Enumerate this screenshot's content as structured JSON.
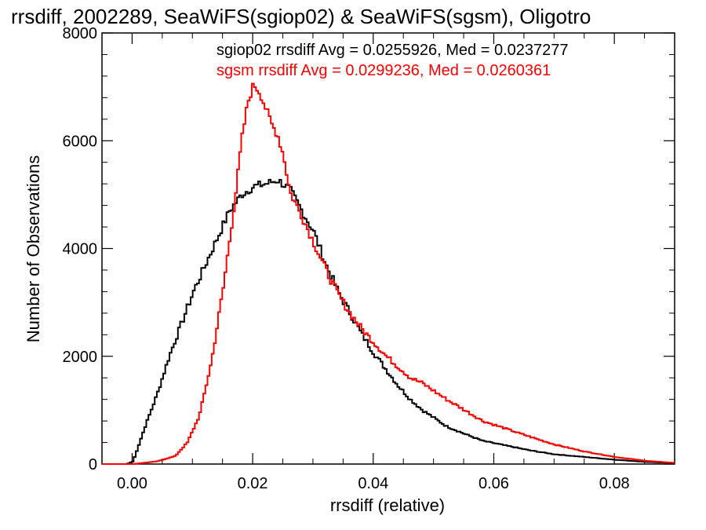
{
  "chart_data": {
    "type": "line",
    "title": "rrsdiff, 2002289, SeaWiFS(sgiop02) & SeaWiFS(sgsm), Oligotro",
    "xlabel": "rrsdiff (relative)",
    "ylabel": "Number of Observations",
    "xlim": [
      -0.005,
      0.09
    ],
    "ylim": [
      0,
      8000
    ],
    "xticks": [
      0.0,
      0.02,
      0.04,
      0.06,
      0.08
    ],
    "xtick_labels": [
      "0.00",
      "0.02",
      "0.04",
      "0.06",
      "0.08"
    ],
    "yticks": [
      0,
      2000,
      4000,
      6000,
      8000
    ],
    "ytick_labels": [
      "0",
      "2000",
      "4000",
      "6000",
      "8000"
    ],
    "grid": false,
    "legend_placement": "top-right",
    "series": [
      {
        "name": "sgiop02 rrsdiff Avg = 0.0255926, Med = 0.0237277",
        "color": "#000000",
        "style": "step",
        "x": [
          -0.004,
          -0.001,
          0.0,
          0.002,
          0.004,
          0.006,
          0.008,
          0.01,
          0.012,
          0.014,
          0.016,
          0.018,
          0.02,
          0.022,
          0.024,
          0.026,
          0.028,
          0.03,
          0.032,
          0.034,
          0.036,
          0.038,
          0.04,
          0.042,
          0.044,
          0.046,
          0.048,
          0.05,
          0.052,
          0.055,
          0.058,
          0.062,
          0.066,
          0.07,
          0.075,
          0.08,
          0.085,
          0.09
        ],
        "values": [
          0,
          0,
          50,
          700,
          1300,
          2000,
          2600,
          3200,
          3700,
          4200,
          4700,
          5000,
          5150,
          5200,
          5270,
          5100,
          4700,
          4300,
          3700,
          3200,
          2800,
          2400,
          2050,
          1750,
          1450,
          1200,
          1000,
          850,
          700,
          560,
          430,
          340,
          250,
          180,
          130,
          80,
          40,
          20
        ]
      },
      {
        "name": "sgsm rrsdiff Avg = 0.0299236, Med = 0.0260361",
        "color": "#ff0000",
        "style": "step",
        "x": [
          -0.004,
          0.0,
          0.004,
          0.007,
          0.009,
          0.011,
          0.013,
          0.015,
          0.017,
          0.018,
          0.019,
          0.02,
          0.021,
          0.022,
          0.023,
          0.024,
          0.025,
          0.026,
          0.028,
          0.03,
          0.032,
          0.034,
          0.036,
          0.038,
          0.04,
          0.042,
          0.044,
          0.046,
          0.048,
          0.05,
          0.052,
          0.055,
          0.058,
          0.062,
          0.066,
          0.07,
          0.075,
          0.08,
          0.085,
          0.09
        ],
        "values": [
          0,
          0,
          50,
          150,
          400,
          900,
          1900,
          3300,
          5000,
          6000,
          6700,
          7050,
          6900,
          6600,
          6300,
          6100,
          5700,
          5050,
          4600,
          4100,
          3600,
          3150,
          2800,
          2500,
          2250,
          2000,
          1800,
          1600,
          1500,
          1350,
          1200,
          1000,
          800,
          650,
          500,
          360,
          230,
          130,
          60,
          20
        ]
      }
    ]
  }
}
